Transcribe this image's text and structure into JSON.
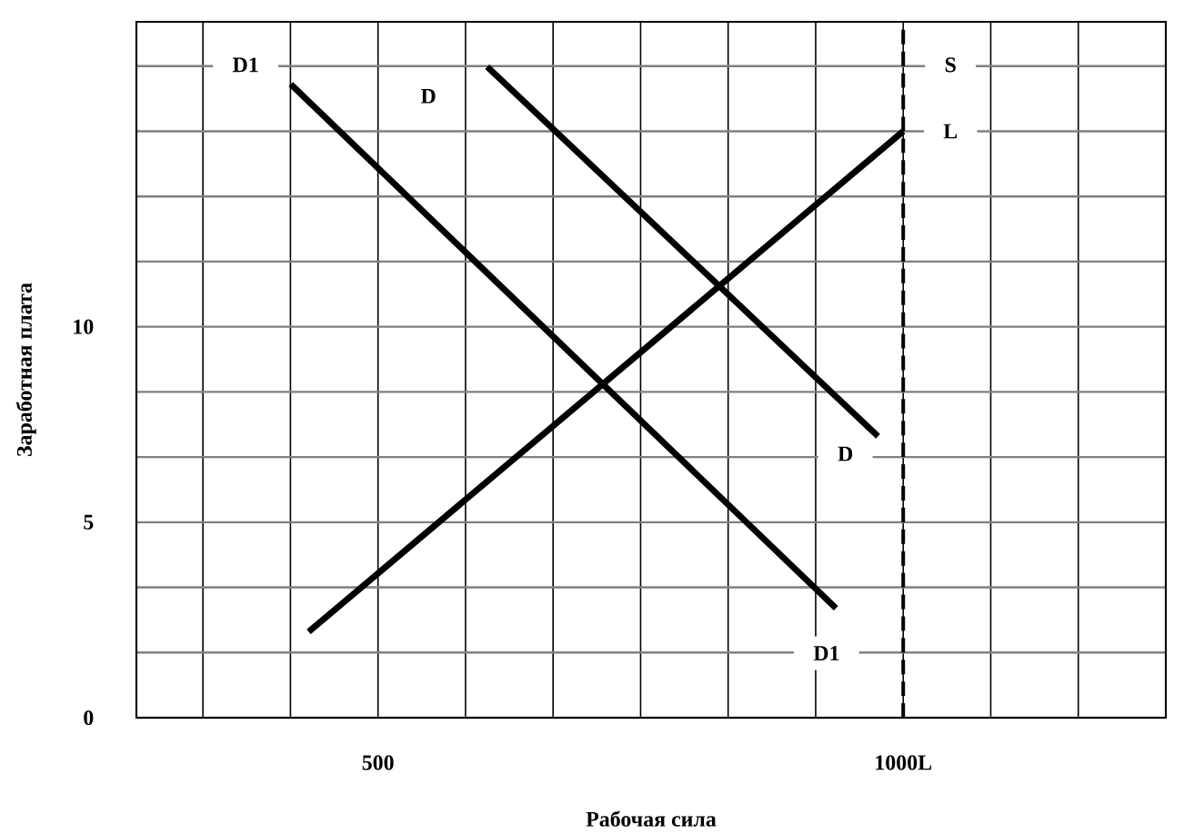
{
  "chart_data": {
    "type": "line",
    "xlabel": "Рабочая сила",
    "ylabel": "Заработная плата",
    "xlim": [
      270,
      1250
    ],
    "ylim": [
      0,
      17.8
    ],
    "xticks": [
      {
        "value": 333.33,
        "label": null
      },
      {
        "value": 416.67,
        "label": null
      },
      {
        "value": 500,
        "label": "500"
      },
      {
        "value": 583.33,
        "label": null
      },
      {
        "value": 666.67,
        "label": null
      },
      {
        "value": 750,
        "label": null
      },
      {
        "value": 833.33,
        "label": null
      },
      {
        "value": 916.67,
        "label": null
      },
      {
        "value": 1000,
        "label": "1000L"
      },
      {
        "value": 1083.33,
        "label": null
      },
      {
        "value": 1166.67,
        "label": null
      },
      {
        "value": 1250,
        "label": null
      }
    ],
    "yticks": [
      0,
      {
        "value": 1.667,
        "label": null
      },
      {
        "value": 3.333,
        "label": null
      },
      5,
      {
        "value": 6.667,
        "label": null
      },
      {
        "value": 8.333,
        "label": null
      },
      10,
      {
        "value": 11.667,
        "label": null
      },
      {
        "value": 13.333,
        "label": null
      },
      {
        "value": 15,
        "label": null
      },
      {
        "value": 16.667,
        "label": null
      }
    ],
    "grid": true,
    "marker": "none",
    "line_style": "solid",
    "series": [
      {
        "color": "#000000",
        "x": [
          434,
          1000
        ],
        "values": [
          2.2,
          15.0
        ]
      },
      {
        "color": "#000000",
        "x": [
          417,
          936
        ],
        "values": [
          16.2,
          2.8
        ]
      },
      {
        "color": "#000000",
        "x": [
          604,
          976
        ],
        "values": [
          16.65,
          7.2
        ]
      }
    ],
    "ref_lines": [
      {
        "axis": "x",
        "value": 1000,
        "label": null,
        "color": "#000000",
        "line_style": "dashed"
      }
    ],
    "annotations": [
      {
        "text": "D1",
        "x": 374,
        "y": 16.7
      },
      {
        "text": "D",
        "x": 548,
        "y": 15.9
      },
      {
        "text": "S",
        "x": 1045,
        "y": 16.7
      },
      {
        "text": "L",
        "x": 1045,
        "y": 15
      },
      {
        "text": "D",
        "x": 945,
        "y": 6.75
      },
      {
        "text": "D1",
        "x": 927,
        "y": 1.65
      }
    ]
  }
}
